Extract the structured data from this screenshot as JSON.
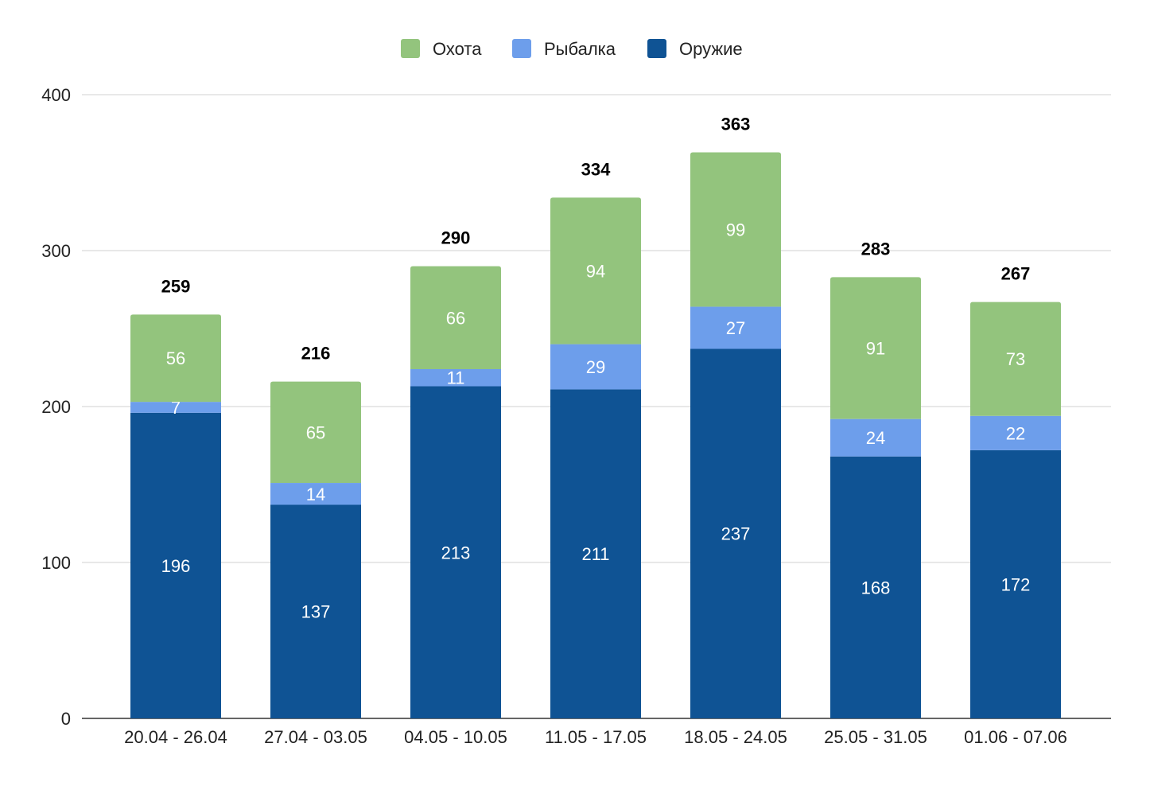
{
  "chart_data": {
    "type": "bar",
    "stacked": true,
    "categories": [
      "20.04 - 26.04",
      "27.04 - 03.05",
      "04.05 - 10.05",
      "11.05 - 17.05",
      "18.05 - 24.05",
      "25.05 - 31.05",
      "01.06 - 07.06"
    ],
    "series": [
      {
        "name": "Оружие",
        "color": "#0f5394",
        "values": [
          196,
          137,
          213,
          211,
          237,
          168,
          172
        ]
      },
      {
        "name": "Рыбалка",
        "color": "#6d9eeb",
        "values": [
          7,
          14,
          11,
          29,
          27,
          24,
          22
        ]
      },
      {
        "name": "Охота",
        "color": "#93c47d",
        "values": [
          56,
          65,
          66,
          94,
          99,
          91,
          73
        ]
      }
    ],
    "totals": [
      259,
      216,
      290,
      334,
      363,
      283,
      267
    ],
    "legend_order": [
      "Охота",
      "Рыбалка",
      "Оружие"
    ],
    "legend_position": "top-center",
    "title": "",
    "xlabel": "",
    "ylabel": "",
    "ylim": [
      0,
      400
    ],
    "yticks": [
      0,
      100,
      200,
      300,
      400
    ],
    "grid": true
  }
}
